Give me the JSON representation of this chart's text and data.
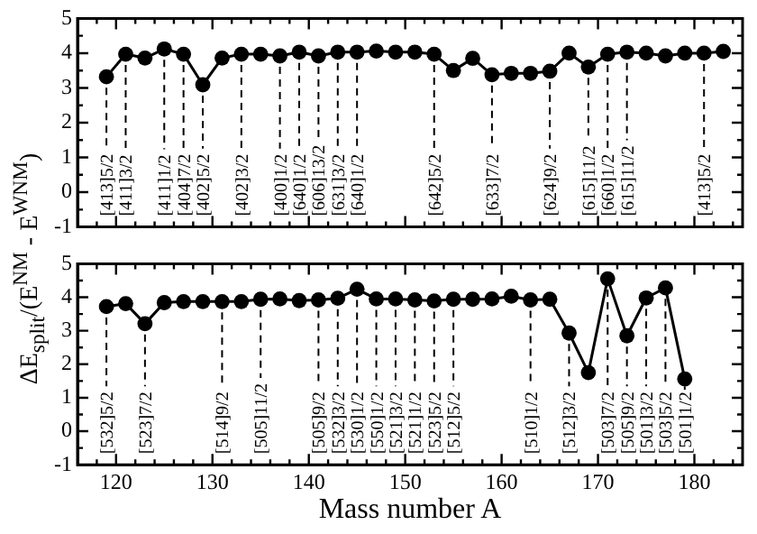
{
  "chart_data": [
    {
      "type": "line",
      "ylabel": "ΔE$_{split}$/(E$^{NM}$ - E$^{WNM}$)",
      "x": [
        119,
        121,
        123,
        125,
        127,
        129,
        131,
        133,
        135,
        137,
        139,
        141,
        143,
        145,
        147,
        149,
        151,
        153,
        155,
        157,
        159,
        161,
        163,
        165,
        167,
        169,
        171,
        173,
        175,
        177,
        179,
        181,
        183
      ],
      "series": [
        {
          "color": "#000000",
          "values": [
            3.32,
            3.97,
            3.86,
            4.12,
            3.97,
            3.09,
            3.86,
            3.97,
            3.97,
            3.92,
            4.03,
            3.92,
            4.03,
            4.03,
            4.06,
            4.03,
            4.03,
            3.97,
            3.5,
            3.85,
            3.38,
            3.42,
            3.42,
            3.48,
            4.0,
            3.6,
            3.97,
            4.03,
            4.0,
            3.92,
            4.0,
            4.0,
            4.05
          ]
        }
      ],
      "xlim": [
        116,
        185
      ],
      "ylim": [
        -1,
        5
      ],
      "xticks": [
        {
          "value": 118,
          "label": null
        },
        120,
        {
          "value": 122,
          "label": null
        },
        {
          "value": 124,
          "label": null
        },
        {
          "value": 126,
          "label": null
        },
        {
          "value": 128,
          "label": null
        },
        130,
        {
          "value": 132,
          "label": null
        },
        {
          "value": 134,
          "label": null
        },
        {
          "value": 136,
          "label": null
        },
        {
          "value": 138,
          "label": null
        },
        140,
        {
          "value": 142,
          "label": null
        },
        {
          "value": 144,
          "label": null
        },
        {
          "value": 146,
          "label": null
        },
        {
          "value": 148,
          "label": null
        },
        150,
        {
          "value": 152,
          "label": null
        },
        {
          "value": 154,
          "label": null
        },
        {
          "value": 156,
          "label": null
        },
        {
          "value": 158,
          "label": null
        },
        160,
        {
          "value": 162,
          "label": null
        },
        {
          "value": 164,
          "label": null
        },
        {
          "value": 166,
          "label": null
        },
        {
          "value": 168,
          "label": null
        },
        170,
        {
          "value": 172,
          "label": null
        },
        {
          "value": 174,
          "label": null
        },
        {
          "value": 176,
          "label": null
        },
        {
          "value": 178,
          "label": null
        },
        180,
        {
          "value": 182,
          "label": null
        },
        {
          "value": 184,
          "label": null
        }
      ],
      "yticks": [
        -1,
        {
          "value": -0.5,
          "label": null
        },
        0,
        {
          "value": 0.5,
          "label": null
        },
        1,
        {
          "value": 1.5,
          "label": null
        },
        2,
        {
          "value": 2.5,
          "label": null
        },
        3,
        {
          "value": 3.5,
          "label": null
        },
        4,
        {
          "value": 4.5,
          "label": null
        },
        5
      ],
      "tick_labels": "y",
      "grid": false,
      "legend": false,
      "marker": "circle",
      "line_style": "solid",
      "annotations": [
        {
          "text": "[413]5/2",
          "x": 119,
          "y": 3.32
        },
        {
          "text": "[411]3/2",
          "x": 121,
          "y": 3.97
        },
        {
          "text": "[411]1/2",
          "x": 125,
          "y": 4.12
        },
        {
          "text": "[404]7/2",
          "x": 127,
          "y": 3.97
        },
        {
          "text": "[402]5/2",
          "x": 129,
          "y": 3.09
        },
        {
          "text": "[402]3/2",
          "x": 133,
          "y": 3.97
        },
        {
          "text": "[400]1/2",
          "x": 137,
          "y": 3.92
        },
        {
          "text": "[640]1/2",
          "x": 139,
          "y": 4.03
        },
        {
          "text": "[606]13/2",
          "x": 141,
          "y": 3.92
        },
        {
          "text": "[631]3/2",
          "x": 143,
          "y": 4.03
        },
        {
          "text": "[640]1/2",
          "x": 145,
          "y": 4.03
        },
        {
          "text": "[642]5/2",
          "x": 153,
          "y": 3.97
        },
        {
          "text": "[633]7/2",
          "x": 159,
          "y": 3.38
        },
        {
          "text": "[624]9/2",
          "x": 165,
          "y": 3.48
        },
        {
          "text": "[615]11/2",
          "x": 169,
          "y": 3.6
        },
        {
          "text": "[660]1/2",
          "x": 171,
          "y": 3.97
        },
        {
          "text": "[615]11/2",
          "x": 173,
          "y": 4.03
        },
        {
          "text": "[413]5/2",
          "x": 181,
          "y": 4.0
        }
      ]
    },
    {
      "type": "line",
      "xlabel": "Mass number A",
      "x": [
        119,
        121,
        123,
        125,
        127,
        129,
        131,
        133,
        135,
        137,
        139,
        141,
        143,
        145,
        147,
        149,
        151,
        153,
        155,
        157,
        159,
        161,
        163,
        165,
        167,
        169,
        171,
        173,
        175,
        177,
        179
      ],
      "series": [
        {
          "color": "#000000",
          "values": [
            3.72,
            3.81,
            3.21,
            3.84,
            3.87,
            3.87,
            3.87,
            3.87,
            3.94,
            3.95,
            3.9,
            3.92,
            3.97,
            4.24,
            3.95,
            3.95,
            3.92,
            3.89,
            3.94,
            3.94,
            3.95,
            4.03,
            3.92,
            3.94,
            2.93,
            1.75,
            4.55,
            2.85,
            3.98,
            4.28,
            1.56
          ]
        }
      ],
      "xlim": [
        116,
        185
      ],
      "ylim": [
        -1,
        5
      ],
      "xticks": [
        {
          "value": 118,
          "label": null
        },
        120,
        {
          "value": 122,
          "label": null
        },
        {
          "value": 124,
          "label": null
        },
        {
          "value": 126,
          "label": null
        },
        {
          "value": 128,
          "label": null
        },
        130,
        {
          "value": 132,
          "label": null
        },
        {
          "value": 134,
          "label": null
        },
        {
          "value": 136,
          "label": null
        },
        {
          "value": 138,
          "label": null
        },
        140,
        {
          "value": 142,
          "label": null
        },
        {
          "value": 144,
          "label": null
        },
        {
          "value": 146,
          "label": null
        },
        {
          "value": 148,
          "label": null
        },
        150,
        {
          "value": 152,
          "label": null
        },
        {
          "value": 154,
          "label": null
        },
        {
          "value": 156,
          "label": null
        },
        {
          "value": 158,
          "label": null
        },
        160,
        {
          "value": 162,
          "label": null
        },
        {
          "value": 164,
          "label": null
        },
        {
          "value": 166,
          "label": null
        },
        {
          "value": 168,
          "label": null
        },
        170,
        {
          "value": 172,
          "label": null
        },
        {
          "value": 174,
          "label": null
        },
        {
          "value": 176,
          "label": null
        },
        {
          "value": 178,
          "label": null
        },
        180,
        {
          "value": 182,
          "label": null
        },
        {
          "value": 184,
          "label": null
        }
      ],
      "yticks": [
        -1,
        {
          "value": -0.5,
          "label": null
        },
        0,
        {
          "value": 0.5,
          "label": null
        },
        1,
        {
          "value": 1.5,
          "label": null
        },
        2,
        {
          "value": 2.5,
          "label": null
        },
        3,
        {
          "value": 3.5,
          "label": null
        },
        4,
        {
          "value": 4.5,
          "label": null
        },
        5
      ],
      "grid": false,
      "legend": false,
      "marker": "circle",
      "line_style": "solid",
      "annotations": [
        {
          "text": "[532]5/2",
          "x": 119,
          "y": 3.72
        },
        {
          "text": "[523]7/2",
          "x": 123,
          "y": 3.21
        },
        {
          "text": "[514]9/2",
          "x": 131,
          "y": 3.87
        },
        {
          "text": "[505]11/2",
          "x": 135,
          "y": 3.94
        },
        {
          "text": "[505]9/2",
          "x": 141,
          "y": 3.92
        },
        {
          "text": "[532]3/2",
          "x": 143,
          "y": 3.97
        },
        {
          "text": "[530]1/2",
          "x": 145,
          "y": 4.24
        },
        {
          "text": "[550]1/2",
          "x": 147,
          "y": 3.95
        },
        {
          "text": "[521]3/2",
          "x": 149,
          "y": 3.95
        },
        {
          "text": "[521]1/2",
          "x": 151,
          "y": 3.92
        },
        {
          "text": "[523]5/2",
          "x": 153,
          "y": 3.89
        },
        {
          "text": "[512]5/2",
          "x": 155,
          "y": 3.94
        },
        {
          "text": "[510]1/2",
          "x": 163,
          "y": 3.92
        },
        {
          "text": "[512]3/2",
          "x": 167,
          "y": 2.93
        },
        {
          "text": "[503]7/2",
          "x": 171,
          "y": 4.55
        },
        {
          "text": "[505]9/2",
          "x": 173,
          "y": 2.85
        },
        {
          "text": "[501]3/2",
          "x": 175,
          "y": 3.98
        },
        {
          "text": "[503]5/2",
          "x": 177,
          "y": 4.28
        },
        {
          "text": "[501]1/2",
          "x": 179,
          "y": 1.56
        }
      ]
    }
  ]
}
